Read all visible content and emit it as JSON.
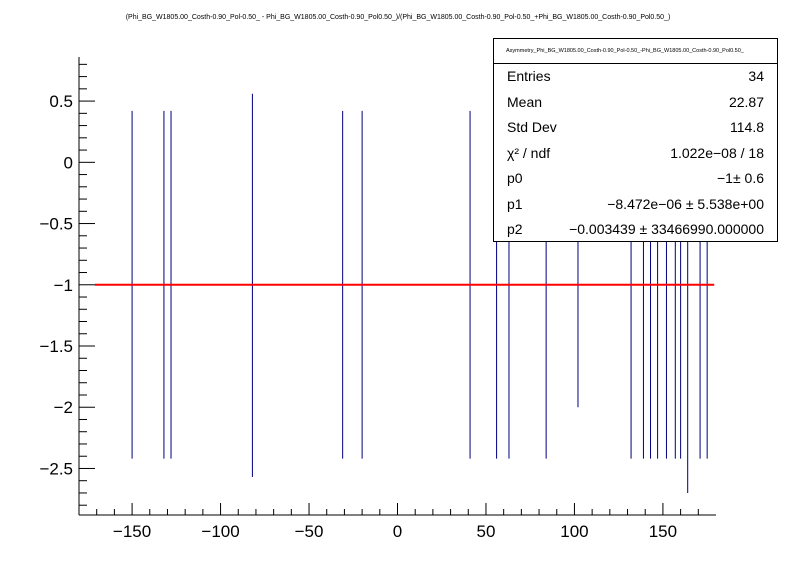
{
  "title": "(Phi_BG_W1805.00_Costh-0.90_Pol-0.50_ - Phi_BG_W1805.00_Costh-0.90_Pol0.50_)/(Phi_BG_W1805.00_Costh-0.90_Pol-0.50_+Phi_BG_W1805.00_Costh-0.90_Pol0.50_)",
  "stats": {
    "name": "Asymmetry_Phi_BG_W1805.00_Costh-0.90_Pol-0.50_-Phi_BG_W1805.00_Costh-0.90_Pol0.50_",
    "rows": [
      {
        "key": "Entries",
        "value": "34"
      },
      {
        "key": "Mean",
        "value": "22.87"
      },
      {
        "key": "Std Dev",
        "value": "114.8"
      },
      {
        "key": "χ² / ndf",
        "value": "1.022e−08 / 18"
      },
      {
        "key": "p0",
        "value": "−1± 0.6"
      },
      {
        "key": "p1",
        "value": "−8.472e−06 ± 5.538e+00"
      },
      {
        "key": "p2",
        "value": "−0.003439 ± 33466990.000000"
      }
    ]
  },
  "colors": {
    "data": "#000080",
    "fit": "#ff0000",
    "axis": "#000000"
  },
  "chart_data": {
    "type": "scatter",
    "xlim": [
      -180,
      180
    ],
    "ylim": [
      -2.88,
      0.86
    ],
    "xticks": [
      -150,
      -100,
      -50,
      0,
      50,
      100,
      150
    ],
    "xtick_labels": [
      "−150",
      "−100",
      "−50",
      "0",
      "50",
      "100",
      "150"
    ],
    "yticks": [
      -2.5,
      -2,
      -1.5,
      -1,
      -0.5,
      0,
      0.5
    ],
    "ytick_labels": [
      "−2.5",
      "−2",
      "−1.5",
      "−1",
      "−0.5",
      "0",
      "0.5"
    ],
    "fit": {
      "name": "fit",
      "value": -1,
      "x_range": [
        -171,
        179
      ]
    },
    "points": [
      {
        "x": -150,
        "y": -1,
        "ylo": -2.42,
        "yhi": 0.42
      },
      {
        "x": -132,
        "y": -1,
        "ylo": -2.42,
        "yhi": 0.42
      },
      {
        "x": -128,
        "y": -1,
        "ylo": -2.42,
        "yhi": 0.42
      },
      {
        "x": -82,
        "y": -1,
        "ylo": -2.57,
        "yhi": 0.56
      },
      {
        "x": -31,
        "y": -1,
        "ylo": -2.42,
        "yhi": 0.42
      },
      {
        "x": -20,
        "y": -1,
        "ylo": -2.42,
        "yhi": 0.42
      },
      {
        "x": 41,
        "y": -1,
        "ylo": -2.42,
        "yhi": 0.42
      },
      {
        "x": 56,
        "y": -1,
        "ylo": -2.42,
        "yhi": 0.42
      },
      {
        "x": 63,
        "y": -1,
        "ylo": -2.42,
        "yhi": 0.42
      },
      {
        "x": 84,
        "y": -1,
        "ylo": -2.42,
        "yhi": 0.42
      },
      {
        "x": 102,
        "y": -1,
        "ylo": -2.0,
        "yhi": 0.42
      },
      {
        "x": 132,
        "y": -1,
        "ylo": -2.42,
        "yhi": 0.42
      },
      {
        "x": 139,
        "y": -1,
        "ylo": -2.42,
        "yhi": 0.42
      },
      {
        "x": 143,
        "y": -1,
        "ylo": -2.42,
        "yhi": 0.42
      },
      {
        "x": 147,
        "y": -1,
        "ylo": -2.42,
        "yhi": 0.42
      },
      {
        "x": 152,
        "y": -1,
        "ylo": -2.42,
        "yhi": 0.42
      },
      {
        "x": 157,
        "y": -1,
        "ylo": -2.42,
        "yhi": 0.42
      },
      {
        "x": 160,
        "y": -1,
        "ylo": -2.42,
        "yhi": 0.42
      },
      {
        "x": 164,
        "y": -1,
        "ylo": -2.7,
        "yhi": 0.42
      },
      {
        "x": 171,
        "y": -1,
        "ylo": -2.42,
        "yhi": 0.42
      },
      {
        "x": 175,
        "y": -1,
        "ylo": -2.42,
        "yhi": 0.42
      }
    ]
  }
}
